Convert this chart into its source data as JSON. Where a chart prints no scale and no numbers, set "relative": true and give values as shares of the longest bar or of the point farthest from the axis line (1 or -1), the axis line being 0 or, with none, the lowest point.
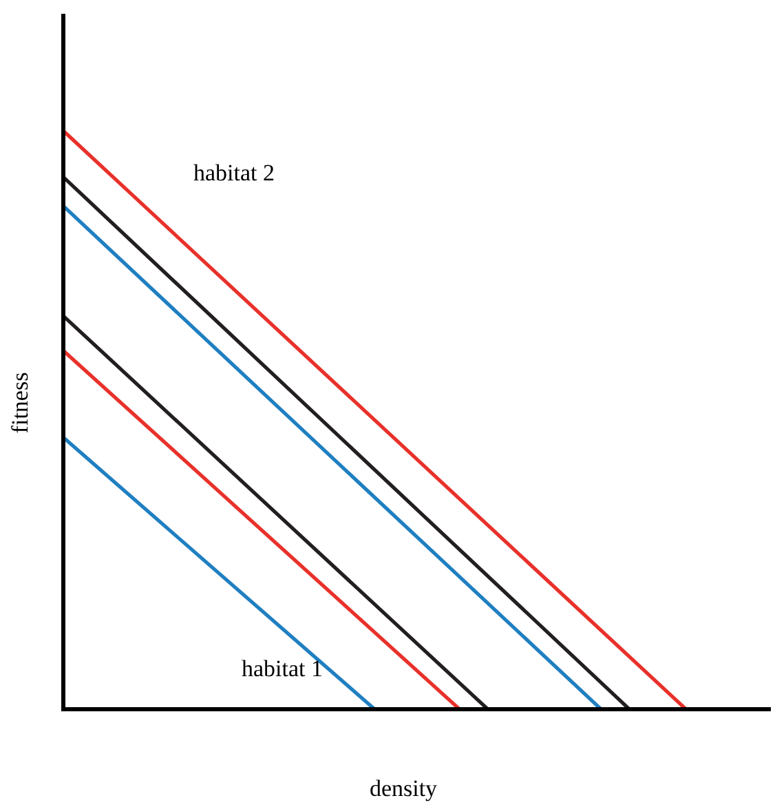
{
  "chart_data": {
    "type": "line",
    "relative": true,
    "xlabel": "density",
    "ylabel": "fitness",
    "line_style": "solid",
    "annotations": [
      "habitat 2",
      "habitat 1"
    ],
    "categories": [
      null,
      null,
      null,
      null,
      null,
      null,
      null,
      null,
      null,
      null,
      null,
      null,
      null,
      null,
      null,
      null,
      null,
      null,
      null,
      null,
      null,
      null,
      null,
      null,
      null,
      null,
      null,
      null,
      null,
      null,
      null,
      null,
      null,
      null,
      null,
      null,
      null,
      null,
      null,
      null,
      null,
      null,
      null,
      null,
      null,
      null,
      null,
      null,
      null,
      null,
      null
    ],
    "series": [
      {
        "color": "#e8312a",
        "values": [
          1,
          null,
          null,
          null,
          null,
          null,
          null,
          null,
          null,
          null,
          null,
          null,
          null,
          null,
          null,
          null,
          null,
          null,
          null,
          null,
          null,
          null,
          null,
          null,
          null,
          null,
          null,
          null,
          null,
          null,
          null,
          null,
          null,
          null,
          null,
          null,
          null,
          null,
          null,
          null,
          null,
          null,
          null,
          null,
          0,
          null,
          null,
          null,
          null,
          null,
          null
        ]
      },
      {
        "color": "#231f20",
        "values": [
          0.92,
          null,
          null,
          null,
          null,
          null,
          null,
          null,
          null,
          null,
          null,
          null,
          null,
          null,
          null,
          null,
          null,
          null,
          null,
          null,
          null,
          null,
          null,
          null,
          null,
          null,
          null,
          null,
          null,
          null,
          null,
          null,
          null,
          null,
          null,
          null,
          null,
          null,
          null,
          null,
          0,
          null,
          null,
          null,
          null,
          null,
          null,
          null,
          null,
          null,
          null
        ]
      },
      {
        "color": "#1f7fc1",
        "values": [
          0.87,
          null,
          null,
          null,
          null,
          null,
          null,
          null,
          null,
          null,
          null,
          null,
          null,
          null,
          null,
          null,
          null,
          null,
          null,
          null,
          null,
          null,
          null,
          null,
          null,
          null,
          null,
          null,
          null,
          null,
          null,
          null,
          null,
          null,
          null,
          null,
          null,
          null,
          0,
          null,
          null,
          null,
          null,
          null,
          null,
          null,
          null,
          null,
          null,
          null,
          null
        ]
      },
      {
        "color": "#231f20",
        "values": [
          0.68,
          null,
          null,
          null,
          null,
          null,
          null,
          null,
          null,
          null,
          null,
          null,
          null,
          null,
          null,
          null,
          null,
          null,
          null,
          null,
          null,
          null,
          null,
          null,
          null,
          null,
          null,
          null,
          null,
          null,
          0,
          null,
          null,
          null,
          null,
          null,
          null,
          null,
          null,
          null,
          null,
          null,
          null,
          null,
          null,
          null,
          null,
          null,
          null,
          null,
          null
        ]
      },
      {
        "color": "#e8312a",
        "values": [
          0.62,
          null,
          null,
          null,
          null,
          null,
          null,
          null,
          null,
          null,
          null,
          null,
          null,
          null,
          null,
          null,
          null,
          null,
          null,
          null,
          null,
          null,
          null,
          null,
          null,
          null,
          null,
          null,
          0,
          null,
          null,
          null,
          null,
          null,
          null,
          null,
          null,
          null,
          null,
          null,
          null,
          null,
          null,
          null,
          null,
          null,
          null,
          null,
          null,
          null,
          null
        ]
      },
      {
        "color": "#1f7fc1",
        "values": [
          0.47,
          null,
          null,
          null,
          null,
          null,
          null,
          null,
          null,
          null,
          null,
          null,
          null,
          null,
          null,
          null,
          null,
          null,
          null,
          null,
          null,
          null,
          0,
          null,
          null,
          null,
          null,
          null,
          null,
          null,
          null,
          null,
          null,
          null,
          null,
          null,
          null,
          null,
          null,
          null,
          null,
          null,
          null,
          null,
          null,
          null,
          null,
          null,
          null,
          null,
          null
        ]
      }
    ]
  }
}
